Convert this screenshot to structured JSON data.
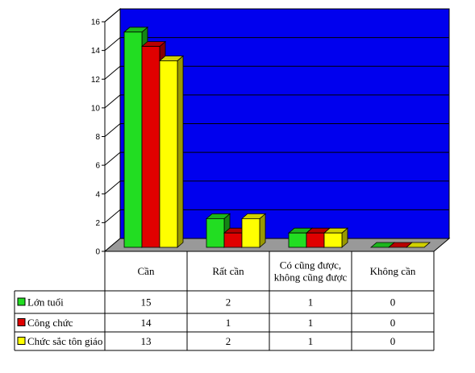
{
  "chart_data": {
    "type": "bar",
    "style": "3d-clustered-column-with-data-table",
    "categories": [
      [
        "Cần"
      ],
      [
        "Rất cần"
      ],
      [
        "Có cũng được,",
        "không cũng được"
      ],
      [
        "Không cần"
      ]
    ],
    "series": [
      {
        "name": "Lớn tuổi",
        "values": [
          15,
          2,
          1,
          0
        ],
        "color": "#22dd22"
      },
      {
        "name": "Công chức",
        "values": [
          14,
          1,
          1,
          0
        ],
        "color": "#e00000"
      },
      {
        "name": "Chức sắc tôn giáo",
        "values": [
          13,
          2,
          1,
          0
        ],
        "color": "#ffff00"
      }
    ],
    "ylim": [
      0,
      16
    ],
    "yticks": [
      0,
      2,
      4,
      6,
      8,
      10,
      12,
      14,
      16
    ],
    "plot_background": "#0000ee",
    "floor_color": "#999999",
    "grid": true,
    "legend": "data-table-left"
  }
}
